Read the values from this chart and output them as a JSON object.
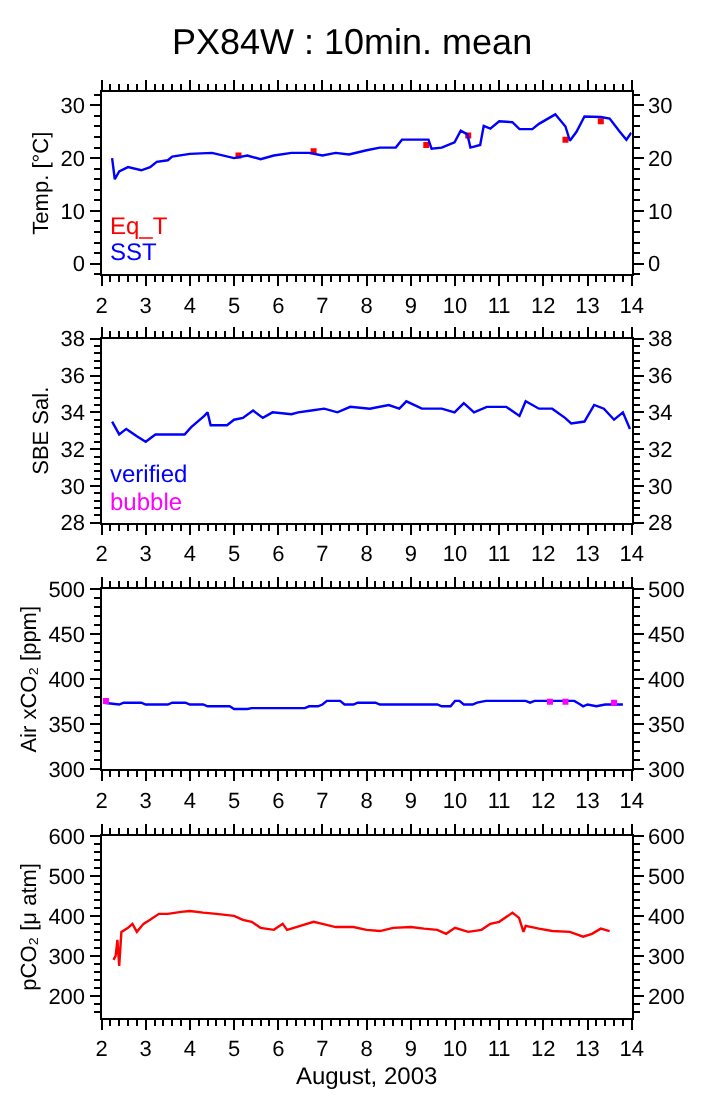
{
  "chart_data": [
    {
      "type": "line",
      "title": "PX84W : 10min. mean",
      "ylabel": "Temp. [°C]",
      "xlim": [
        2,
        14
      ],
      "xticks": [
        2,
        3,
        4,
        5,
        6,
        7,
        8,
        9,
        10,
        11,
        12,
        13,
        14
      ],
      "ylim": [
        -2,
        32.5
      ],
      "yticks": [
        0,
        10,
        20,
        30
      ],
      "y2lim": [
        -2,
        32.5
      ],
      "y2ticks": [
        0,
        10,
        20,
        30
      ],
      "legend": "bottom left",
      "series": [
        {
          "name": "Eq_T",
          "color": "#ff0000",
          "type": "scatter",
          "x": [
            5.1,
            6.8,
            9.35,
            10.3,
            12.5,
            13.3
          ],
          "values": [
            20.5,
            21.3,
            22.5,
            24.3,
            23.5,
            27.0
          ]
        },
        {
          "name": "SST",
          "color": "#0000ff",
          "x": [
            2.24,
            2.3,
            2.4,
            2.6,
            2.9,
            3.1,
            3.25,
            3.5,
            3.6,
            4.0,
            4.5,
            5.0,
            5.3,
            5.6,
            5.9,
            6.3,
            6.7,
            7.0,
            7.3,
            7.6,
            8.0,
            8.3,
            8.66,
            8.8,
            9.4,
            9.47,
            9.7,
            9.99,
            10.13,
            10.28,
            10.35,
            10.57,
            10.65,
            10.8,
            11.0,
            11.3,
            11.46,
            11.75,
            11.9,
            12.27,
            12.5,
            12.6,
            12.75,
            12.93,
            13.3,
            13.5,
            13.73,
            13.88,
            13.99
          ],
          "values": [
            20,
            16,
            17.5,
            18.3,
            17.7,
            18.3,
            19.3,
            19.6,
            20.3,
            20.8,
            21,
            20,
            20.5,
            19.8,
            20.5,
            21,
            21,
            20.5,
            21,
            20.7,
            21.5,
            22,
            22,
            23.5,
            23.5,
            21.8,
            22,
            23,
            25.2,
            24.5,
            22,
            22.5,
            26.1,
            25.6,
            27,
            26.8,
            25.5,
            25.5,
            26.5,
            28.3,
            26,
            23.3,
            25,
            27.9,
            27.8,
            27.5,
            25,
            23.5,
            24.8
          ]
        }
      ]
    },
    {
      "type": "line",
      "ylabel": "SBE Sal.",
      "xlim": [
        2,
        14
      ],
      "xticks": [
        2,
        3,
        4,
        5,
        6,
        7,
        8,
        9,
        10,
        11,
        12,
        13,
        14
      ],
      "ylim": [
        28,
        38
      ],
      "yticks": [
        28,
        30,
        32,
        34,
        36,
        38
      ],
      "y2lim": [
        28,
        38
      ],
      "y2ticks": [
        28,
        30,
        32,
        34,
        36,
        38
      ],
      "legend": "bottom left",
      "series": [
        {
          "name": "verified",
          "color": "#0000ff",
          "x": [
            2.24,
            2.4,
            2.56,
            2.8,
            3.0,
            3.22,
            3.66,
            3.88,
            4.03,
            4.32,
            4.4,
            4.47,
            4.84,
            5.0,
            5.2,
            5.43,
            5.65,
            5.87,
            6.3,
            6.45,
            6.75,
            7.04,
            7.34,
            7.63,
            8.07,
            8.5,
            8.74,
            8.9,
            9.25,
            9.7,
            9.99,
            10.2,
            10.43,
            10.72,
            11.16,
            11.46,
            11.6,
            11.9,
            12.2,
            12.49,
            12.63,
            12.93,
            13.15,
            13.37,
            13.6,
            13.8,
            13.96
          ],
          "values": [
            33.5,
            32.8,
            33.1,
            32.7,
            32.4,
            32.8,
            32.8,
            32.8,
            33.2,
            33.8,
            34,
            33.3,
            33.3,
            33.6,
            33.7,
            34.1,
            33.7,
            34,
            33.9,
            34,
            34.1,
            34.2,
            34,
            34.3,
            34.2,
            34.4,
            34.2,
            34.6,
            34.2,
            34.2,
            34,
            34.5,
            34,
            34.3,
            34.3,
            33.8,
            34.6,
            34.2,
            34.2,
            33.7,
            33.4,
            33.5,
            34.4,
            34.2,
            33.6,
            34,
            33.1
          ]
        },
        {
          "name": "bubble",
          "color": "#ff00ff"
        }
      ]
    },
    {
      "type": "line",
      "ylabel": "Air xCO₂ [ppm]",
      "xlim": [
        2,
        14
      ],
      "xticks": [
        2,
        3,
        4,
        5,
        6,
        7,
        8,
        9,
        10,
        11,
        12,
        13,
        14
      ],
      "ylim": [
        300,
        500
      ],
      "yticks": [
        300,
        350,
        400,
        450,
        500
      ],
      "y2lim": [
        300,
        500
      ],
      "y2ticks": [
        300,
        350,
        400,
        450,
        500
      ],
      "series": [
        {
          "color": "#0000ff",
          "x": [
            2.05,
            2.4,
            2.5,
            2.9,
            3.0,
            3.5,
            3.6,
            3.9,
            4.0,
            4.3,
            4.4,
            4.9,
            5.0,
            5.3,
            5.4,
            6.6,
            6.7,
            6.9,
            7.0,
            7.1,
            7.4,
            7.5,
            7.7,
            7.8,
            8.2,
            8.3,
            9.6,
            9.7,
            9.9,
            10.0,
            10.1,
            10.2,
            10.4,
            10.5,
            10.7,
            11.6,
            11.7,
            11.8,
            12.7,
            12.8,
            12.9,
            13.0,
            13.2,
            13.4,
            13.8
          ],
          "values": [
            374,
            372,
            374,
            374,
            372,
            372,
            374,
            374,
            372,
            372,
            370,
            370,
            367,
            367,
            368,
            368,
            370,
            370,
            372,
            376,
            376,
            372,
            372,
            374,
            374,
            372,
            372,
            370,
            370,
            376,
            376,
            372,
            372,
            374,
            376,
            376,
            374,
            376,
            376,
            373,
            370,
            372,
            370,
            372,
            372
          ]
        },
        {
          "color": "#ff00ff",
          "type": "scatter",
          "x": [
            2.1,
            12.15,
            12.5,
            13.6
          ],
          "values": [
            376,
            375,
            375,
            374
          ]
        }
      ]
    },
    {
      "type": "line",
      "ylabel": "pCO₂ [μ atm]",
      "xlabel": "August, 2003",
      "xlim": [
        2,
        14
      ],
      "xticks": [
        2,
        3,
        4,
        5,
        6,
        7,
        8,
        9,
        10,
        11,
        12,
        13,
        14
      ],
      "ylim": [
        145,
        600
      ],
      "yticks": [
        200,
        300,
        400,
        500,
        600
      ],
      "y2lim": [
        145,
        600
      ],
      "y2ticks": [
        200,
        300,
        400,
        500,
        600
      ],
      "series": [
        {
          "color": "#ff0000",
          "x": [
            2.27,
            2.32,
            2.36,
            2.4,
            2.45,
            2.6,
            2.7,
            2.8,
            2.95,
            3.1,
            3.3,
            3.5,
            3.8,
            4.0,
            4.3,
            4.6,
            5.0,
            5.2,
            5.4,
            5.6,
            5.9,
            6.1,
            6.2,
            6.5,
            6.8,
            7.0,
            7.3,
            7.7,
            8.0,
            8.3,
            8.6,
            9.0,
            9.3,
            9.6,
            9.8,
            10.0,
            10.3,
            10.6,
            10.8,
            11.0,
            11.2,
            11.3,
            11.45,
            11.55,
            11.6,
            11.9,
            12.2,
            12.6,
            12.9,
            13.1,
            13.3,
            13.5
          ],
          "values": [
            290,
            300,
            340,
            275,
            360,
            370,
            380,
            360,
            380,
            390,
            405,
            405,
            410,
            412,
            408,
            405,
            400,
            390,
            385,
            370,
            365,
            380,
            365,
            375,
            385,
            380,
            372,
            372,
            365,
            362,
            370,
            372,
            368,
            365,
            355,
            370,
            360,
            365,
            380,
            385,
            400,
            408,
            395,
            360,
            375,
            368,
            362,
            360,
            348,
            355,
            368,
            362
          ]
        }
      ]
    }
  ]
}
